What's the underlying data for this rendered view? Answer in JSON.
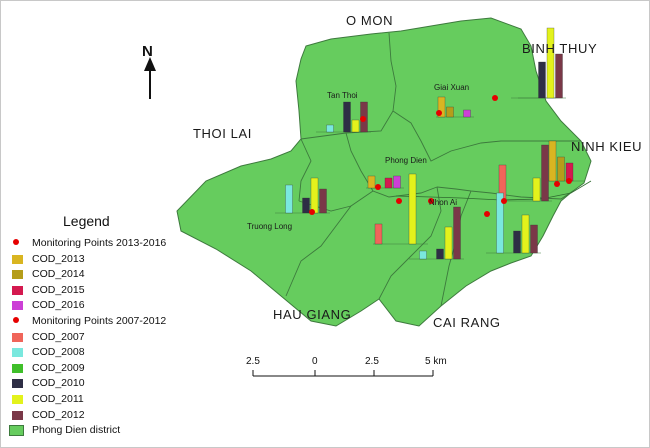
{
  "places": {
    "o_mon": "O MON",
    "thoi_lai": "THOI LAI",
    "binh_thuy": "BINH THUY",
    "ninh_kieu": "NINH KIEU",
    "hau_giang": "HAU GIANG",
    "cai_rang": "CAI RANG"
  },
  "communes": {
    "tan_thoi": "Tan Thoi",
    "giai_xuan": "Giai Xuan",
    "phong_dien": "Phong Dien",
    "truong_long": "Truong Long",
    "nhon_ai": "Nhon Ai"
  },
  "north_arrow": {
    "letter": "N"
  },
  "scale_bar": {
    "labels": [
      "2.5",
      "0",
      "2.5",
      "5 km"
    ]
  },
  "legend": {
    "title": "Legend",
    "items": [
      {
        "label": "Monitoring Points 2013-2016",
        "symbol": "dot",
        "color": "#e60000"
      },
      {
        "label": "COD_2013",
        "symbol": "box",
        "color": "#d9b521"
      },
      {
        "label": "COD_2014",
        "symbol": "box",
        "color": "#b59d1a"
      },
      {
        "label": "COD_2015",
        "symbol": "box",
        "color": "#d4194f"
      },
      {
        "label": "COD_2016",
        "symbol": "box",
        "color": "#cc3fd6"
      },
      {
        "label": "Monitoring Points 2007-2012",
        "symbol": "dot",
        "color": "#e60000"
      },
      {
        "label": "COD_2007",
        "symbol": "box",
        "color": "#f0655a"
      },
      {
        "label": "COD_2008",
        "symbol": "box",
        "color": "#7ae8de"
      },
      {
        "label": "COD_2009",
        "symbol": "box",
        "color": "#3fbf2a"
      },
      {
        "label": "COD_2010",
        "symbol": "box",
        "color": "#2e2e45"
      },
      {
        "label": "COD_2011",
        "symbol": "box",
        "color": "#e3f21c"
      },
      {
        "label": "COD_2012",
        "symbol": "box",
        "color": "#7a3848"
      },
      {
        "label": "Phong Dien district",
        "symbol": "district",
        "color": "#66cc5e"
      }
    ]
  },
  "colors": {
    "district_fill": "#66cc5e",
    "district_border": "#3d7a3d",
    "monitoring_point": "#e60000",
    "COD_2007": "#f0655a",
    "COD_2008": "#7ae8de",
    "COD_2009": "#3fbf2a",
    "COD_2010": "#2e2e45",
    "COD_2011": "#e3f21c",
    "COD_2012": "#7a3848",
    "COD_2013": "#d9b521",
    "COD_2014": "#b59d1a",
    "COD_2015": "#d4194f",
    "COD_2016": "#cc3fd6"
  },
  "chart_data": {
    "type": "bar",
    "units": "relative COD level (no scale printed)",
    "groups": [
      {
        "site": "Binh Thuy 2013-2016",
        "years": [
          "COD_2013",
          "COD_2014",
          "COD_2015",
          "COD_2016"
        ],
        "values": [
          0,
          0,
          0,
          0
        ]
      },
      {
        "site": "Binh Thuy 2007-2012",
        "years": [
          "COD_2007",
          "COD_2008",
          "COD_2009",
          "COD_2010",
          "COD_2011",
          "COD_2012"
        ],
        "values": [
          0,
          0,
          0,
          36,
          70,
          44
        ]
      },
      {
        "site": "Tan Thoi 2007-2012",
        "years": [
          "COD_2007",
          "COD_2008",
          "COD_2009",
          "COD_2010",
          "COD_2011",
          "COD_2012"
        ],
        "values": [
          0,
          7,
          0,
          30,
          12,
          30
        ]
      },
      {
        "site": "Giai Xuan 2013-2016",
        "years": [
          "COD_2013",
          "COD_2014",
          "COD_2015",
          "COD_2016"
        ],
        "values": [
          20,
          10,
          0,
          7
        ]
      },
      {
        "site": "Phong Dien 2013-2016",
        "years": [
          "COD_2013",
          "COD_2014",
          "COD_2015",
          "COD_2016"
        ],
        "values": [
          12,
          0,
          10,
          12
        ]
      },
      {
        "site": "Truong Long 2007-2012",
        "years": [
          "COD_2007",
          "COD_2008",
          "COD_2009",
          "COD_2010",
          "COD_2011",
          "COD_2012"
        ],
        "values": [
          0,
          28,
          0,
          15,
          35,
          24
        ]
      },
      {
        "site": "Ninh Kieu 2013-2016",
        "years": [
          "COD_2013",
          "COD_2014",
          "COD_2015",
          "COD_2016"
        ],
        "values": [
          40,
          24,
          18,
          0
        ]
      },
      {
        "site": "Ninh Kieu 2007-2012",
        "years": [
          "COD_2007",
          "COD_2008",
          "COD_2009",
          "COD_2010",
          "COD_2011",
          "COD_2012"
        ],
        "values": [
          36,
          0,
          0,
          0,
          23,
          56
        ]
      },
      {
        "site": "Phong Dien south 2007-2012",
        "years": [
          "COD_2007",
          "COD_2008",
          "COD_2009",
          "COD_2010",
          "COD_2011",
          "COD_2012"
        ],
        "values": [
          20,
          0,
          0,
          0,
          70,
          0
        ]
      },
      {
        "site": "Nhon Ai 2007-2012",
        "years": [
          "COD_2007",
          "COD_2008",
          "COD_2009",
          "COD_2010",
          "COD_2011",
          "COD_2012"
        ],
        "values": [
          0,
          8,
          0,
          10,
          32,
          52
        ]
      },
      {
        "site": "Cai Rang 2007-2012",
        "years": [
          "COD_2007",
          "COD_2008",
          "COD_2009",
          "COD_2010",
          "COD_2011",
          "COD_2012"
        ],
        "values": [
          0,
          60,
          0,
          22,
          38,
          28
        ]
      }
    ]
  }
}
